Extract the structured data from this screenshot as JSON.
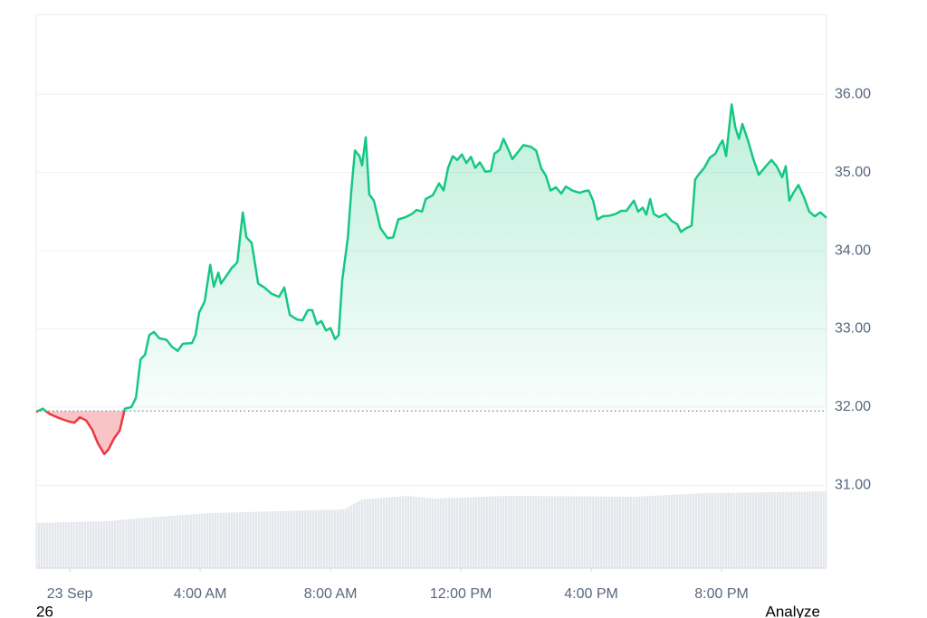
{
  "chart_data": {
    "type": "line",
    "x": [
      -1.03,
      -0.83,
      -0.61,
      -0.33,
      -0.06,
      0.14,
      0.31,
      0.5,
      0.69,
      0.86,
      1.06,
      1.19,
      1.36,
      1.53,
      1.69,
      1.89,
      2.03,
      2.17,
      2.31,
      2.44,
      2.58,
      2.75,
      2.97,
      3.14,
      3.31,
      3.47,
      3.75,
      3.86,
      3.97,
      4.14,
      4.31,
      4.42,
      4.56,
      4.64,
      4.81,
      4.97,
      5.14,
      5.31,
      5.42,
      5.58,
      5.78,
      5.97,
      6.19,
      6.42,
      6.58,
      6.75,
      6.97,
      7.14,
      7.31,
      7.44,
      7.58,
      7.72,
      7.86,
      8.0,
      8.14,
      8.25,
      8.36,
      8.53,
      8.64,
      8.75,
      8.89,
      8.97,
      9.08,
      9.19,
      9.33,
      9.53,
      9.75,
      9.92,
      10.08,
      10.31,
      10.5,
      10.64,
      10.81,
      10.92,
      11.14,
      11.33,
      11.47,
      11.61,
      11.75,
      11.89,
      12.03,
      12.17,
      12.31,
      12.44,
      12.58,
      12.75,
      12.92,
      13.03,
      13.19,
      13.31,
      13.47,
      13.58,
      13.75,
      13.92,
      14.14,
      14.31,
      14.47,
      14.61,
      14.75,
      14.92,
      15.08,
      15.22,
      15.42,
      15.64,
      15.78,
      15.92,
      16.06,
      16.19,
      16.36,
      16.58,
      16.75,
      16.92,
      17.08,
      17.31,
      17.44,
      17.58,
      17.69,
      17.81,
      17.92,
      18.08,
      18.28,
      18.47,
      18.64,
      18.75,
      18.89,
      19.08,
      19.19,
      19.31,
      19.47,
      19.64,
      19.81,
      19.94,
      20.03,
      20.14,
      20.31,
      20.42,
      20.53,
      20.64,
      20.81,
      20.97,
      21.14,
      21.36,
      21.53,
      21.69,
      21.86,
      21.97,
      22.08,
      22.19,
      22.36,
      22.53,
      22.69,
      22.86,
      23.03,
      23.22
    ],
    "series": [
      {
        "up_color": "#16c784",
        "down_color": "#ea3943",
        "values": [
          31.94,
          31.98,
          31.91,
          31.86,
          31.82,
          31.8,
          31.87,
          31.83,
          31.71,
          31.54,
          31.4,
          31.46,
          31.6,
          31.7,
          31.98,
          32.0,
          32.12,
          32.61,
          32.67,
          32.92,
          32.96,
          32.88,
          32.86,
          32.77,
          32.72,
          32.81,
          32.82,
          32.92,
          33.21,
          33.35,
          33.82,
          33.54,
          33.72,
          33.58,
          33.68,
          33.78,
          33.85,
          34.49,
          34.17,
          34.1,
          33.58,
          33.53,
          33.45,
          33.41,
          33.53,
          33.18,
          33.12,
          33.11,
          33.24,
          33.24,
          33.06,
          33.1,
          32.98,
          33.01,
          32.87,
          32.92,
          33.62,
          34.16,
          34.77,
          35.28,
          35.21,
          35.09,
          35.45,
          34.72,
          34.64,
          34.29,
          34.16,
          34.17,
          34.4,
          34.43,
          34.47,
          34.52,
          34.5,
          34.66,
          34.71,
          34.86,
          34.77,
          35.06,
          35.21,
          35.16,
          35.23,
          35.12,
          35.2,
          35.06,
          35.13,
          35.01,
          35.02,
          35.24,
          35.29,
          35.43,
          35.28,
          35.17,
          35.26,
          35.35,
          35.33,
          35.28,
          35.05,
          34.96,
          34.77,
          34.81,
          34.73,
          34.82,
          34.77,
          34.74,
          34.76,
          34.77,
          34.64,
          34.4,
          34.44,
          34.45,
          34.47,
          34.51,
          34.51,
          34.64,
          34.5,
          34.55,
          34.46,
          34.66,
          34.47,
          34.43,
          34.47,
          34.38,
          34.34,
          34.24,
          34.28,
          34.32,
          34.91,
          34.98,
          35.06,
          35.19,
          35.24,
          35.35,
          35.41,
          35.21,
          35.87,
          35.58,
          35.43,
          35.62,
          35.41,
          35.18,
          34.97,
          35.08,
          35.16,
          35.08,
          34.94,
          35.08,
          34.64,
          34.73,
          34.84,
          34.68,
          34.5,
          34.44,
          34.49,
          34.42
        ]
      }
    ],
    "baseline": 31.95,
    "xlim": [
      -1.03,
      23.22
    ],
    "ylim": [
      29.94,
      37.02
    ],
    "xticks": [
      {
        "value": 0,
        "label": "23 Sep"
      },
      {
        "value": 4,
        "label": "4:00 AM"
      },
      {
        "value": 8,
        "label": "8:00 AM"
      },
      {
        "value": 12,
        "label": "12:00 PM"
      },
      {
        "value": 16,
        "label": "4:00 PM"
      },
      {
        "value": 20,
        "label": "8:00 PM"
      }
    ],
    "yticks": [
      {
        "value": 31,
        "label": "31.00"
      },
      {
        "value": 32,
        "label": "32.00"
      },
      {
        "value": 33,
        "label": "33.00"
      },
      {
        "value": 34,
        "label": "34.00"
      },
      {
        "value": 35,
        "label": "35.00"
      },
      {
        "value": 36,
        "label": "36.00"
      }
    ],
    "grid": true
  },
  "footer": {
    "left": "26",
    "right": "Analyze"
  }
}
